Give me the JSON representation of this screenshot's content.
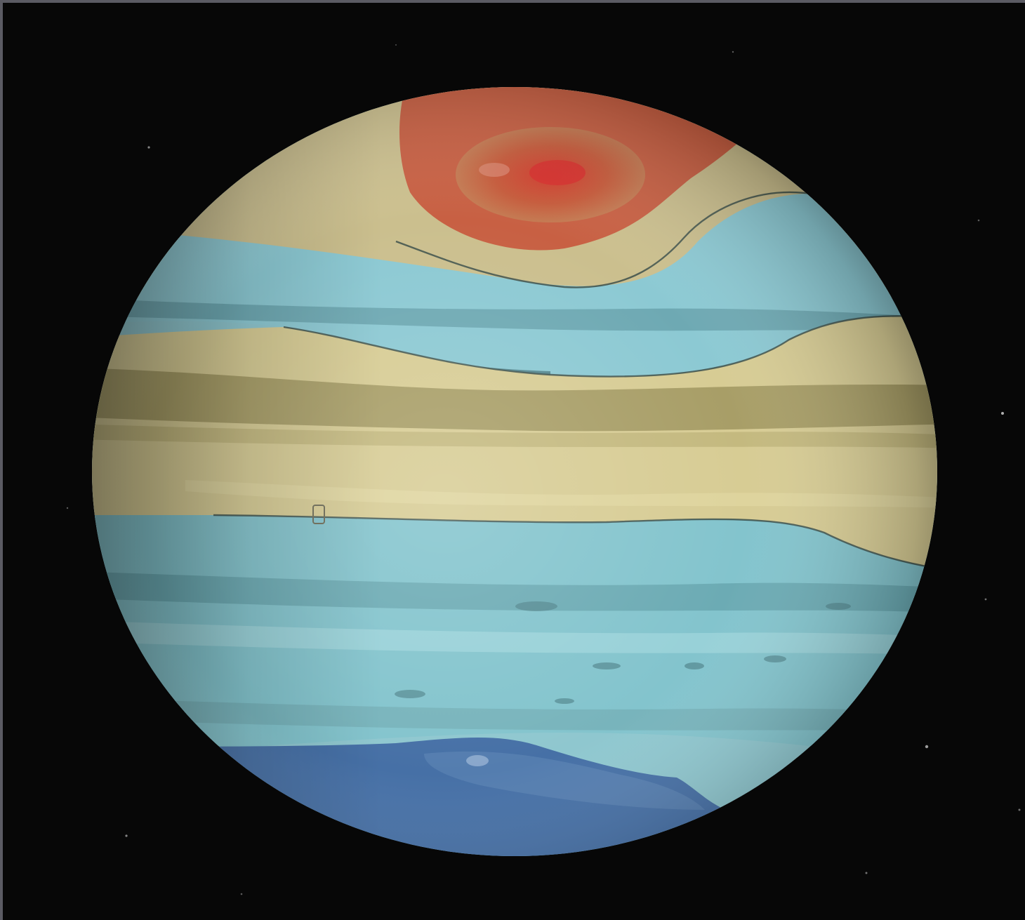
{
  "image": {
    "subject": "planet-jupiter",
    "colors": {
      "space": "#070707",
      "frame": "#5b5b63",
      "polar_cap_red": "#c24f35",
      "warm_tan_band": "#cfc18a",
      "olive_band": "#9b9260",
      "cyan_band": "#7fc3cc",
      "deep_blue_cap": "#3f67a3",
      "band_outline": "#3c4f4a"
    }
  }
}
